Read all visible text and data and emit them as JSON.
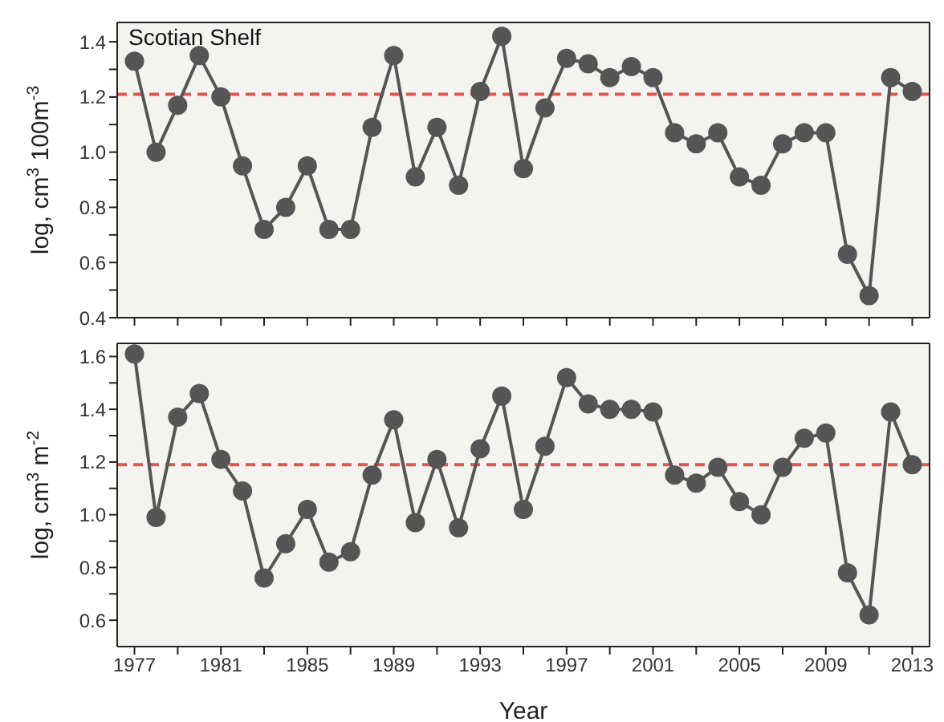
{
  "chart_data": [
    {
      "type": "line",
      "title": "Scotian Shelf",
      "ylabel": "log, cm$^{3}$ 100m$^{-3}$",
      "x": [
        1977,
        1978,
        1979,
        1980,
        1981,
        1982,
        1983,
        1984,
        1985,
        1986,
        1987,
        1988,
        1989,
        1990,
        1991,
        1992,
        1993,
        1994,
        1995,
        1996,
        1997,
        1998,
        1999,
        2000,
        2001,
        2002,
        2003,
        2004,
        2005,
        2006,
        2007,
        2008,
        2009,
        2010,
        2011,
        2012,
        2013
      ],
      "series": [
        {
          "color": "#555555",
          "values": [
            1.33,
            1.0,
            1.17,
            1.35,
            1.2,
            0.95,
            0.72,
            0.8,
            0.95,
            0.72,
            0.72,
            1.09,
            1.35,
            0.91,
            1.09,
            0.88,
            1.22,
            1.42,
            0.94,
            1.16,
            1.34,
            1.32,
            1.27,
            1.31,
            1.27,
            1.07,
            1.03,
            1.07,
            0.91,
            0.88,
            1.03,
            1.07,
            1.07,
            0.63,
            0.48,
            1.27,
            1.22
          ]
        }
      ],
      "xlim": [
        1976.2,
        2013.8
      ],
      "xticks": [
        {
          "value": 1977,
          "label": null
        },
        {
          "value": 1979,
          "label": null
        },
        {
          "value": 1981,
          "label": null
        },
        {
          "value": 1983,
          "label": null
        },
        {
          "value": 1985,
          "label": null
        },
        {
          "value": 1987,
          "label": null
        },
        {
          "value": 1989,
          "label": null
        },
        {
          "value": 1991,
          "label": null
        },
        {
          "value": 1993,
          "label": null
        },
        {
          "value": 1995,
          "label": null
        },
        {
          "value": 1997,
          "label": null
        },
        {
          "value": 1999,
          "label": null
        },
        {
          "value": 2001,
          "label": null
        },
        {
          "value": 2003,
          "label": null
        },
        {
          "value": 2005,
          "label": null
        },
        {
          "value": 2007,
          "label": null
        },
        {
          "value": 2009,
          "label": null
        },
        {
          "value": 2011,
          "label": null
        },
        {
          "value": 2013,
          "label": null
        }
      ],
      "ylim": [
        0.4,
        1.47
      ],
      "yticks": [
        {
          "value": 0.4,
          "label": "0.4"
        },
        {
          "value": 0.5,
          "label": null
        },
        {
          "value": 0.6,
          "label": "0.6"
        },
        {
          "value": 0.7,
          "label": null
        },
        {
          "value": 0.8,
          "label": "0.8"
        },
        {
          "value": 0.9,
          "label": null
        },
        {
          "value": 1.0,
          "label": "1.0"
        },
        {
          "value": 1.1,
          "label": null
        },
        {
          "value": 1.2,
          "label": "1.2"
        },
        {
          "value": 1.3,
          "label": null
        },
        {
          "value": 1.4,
          "label": "1.4"
        }
      ],
      "ref_lines": [
        {
          "axis": "y",
          "value": 1.21,
          "color": "#e05555",
          "line_style": "dashed"
        }
      ],
      "tick_labels": "y",
      "marker": "circle",
      "line_style": "solid",
      "grid": false,
      "legend": false
    },
    {
      "type": "line",
      "xlabel": "Year",
      "ylabel": "log, cm$^{3}$ m$^{-2}$",
      "x": [
        1977,
        1978,
        1979,
        1980,
        1981,
        1982,
        1983,
        1984,
        1985,
        1986,
        1987,
        1988,
        1989,
        1990,
        1991,
        1992,
        1993,
        1994,
        1995,
        1996,
        1997,
        1998,
        1999,
        2000,
        2001,
        2002,
        2003,
        2004,
        2005,
        2006,
        2007,
        2008,
        2009,
        2010,
        2011,
        2012,
        2013
      ],
      "series": [
        {
          "color": "#555555",
          "values": [
            1.61,
            0.99,
            1.37,
            1.46,
            1.21,
            1.09,
            0.76,
            0.89,
            1.02,
            0.82,
            0.86,
            1.15,
            1.36,
            0.97,
            1.21,
            0.95,
            1.25,
            1.45,
            1.02,
            1.26,
            1.52,
            1.42,
            1.4,
            1.4,
            1.39,
            1.15,
            1.12,
            1.18,
            1.05,
            1.0,
            1.18,
            1.29,
            1.31,
            0.78,
            0.62,
            1.39,
            1.19
          ]
        }
      ],
      "xlim": [
        1976.2,
        2013.8
      ],
      "xticks": [
        1977,
        {
          "value": 1979,
          "label": null
        },
        1981,
        {
          "value": 1983,
          "label": null
        },
        1985,
        {
          "value": 1987,
          "label": null
        },
        1989,
        {
          "value": 1991,
          "label": null
        },
        1993,
        {
          "value": 1995,
          "label": null
        },
        1997,
        {
          "value": 1999,
          "label": null
        },
        2001,
        {
          "value": 2003,
          "label": null
        },
        2005,
        {
          "value": 2007,
          "label": null
        },
        2009,
        {
          "value": 2011,
          "label": null
        },
        2013
      ],
      "ylim": [
        0.5,
        1.65
      ],
      "yticks": [
        {
          "value": 0.6,
          "label": "0.6"
        },
        {
          "value": 0.7,
          "label": null
        },
        {
          "value": 0.8,
          "label": "0.8"
        },
        {
          "value": 0.9,
          "label": null
        },
        {
          "value": 1.0,
          "label": "1.0"
        },
        {
          "value": 1.1,
          "label": null
        },
        {
          "value": 1.2,
          "label": "1.2"
        },
        {
          "value": 1.3,
          "label": null
        },
        {
          "value": 1.4,
          "label": "1.4"
        },
        {
          "value": 1.5,
          "label": null
        },
        {
          "value": 1.6,
          "label": "1.6"
        }
      ],
      "ref_lines": [
        {
          "axis": "y",
          "value": 1.19,
          "color": "#e05555",
          "line_style": "dashed"
        }
      ],
      "marker": "circle",
      "line_style": "solid",
      "grid": false,
      "legend": false
    }
  ]
}
